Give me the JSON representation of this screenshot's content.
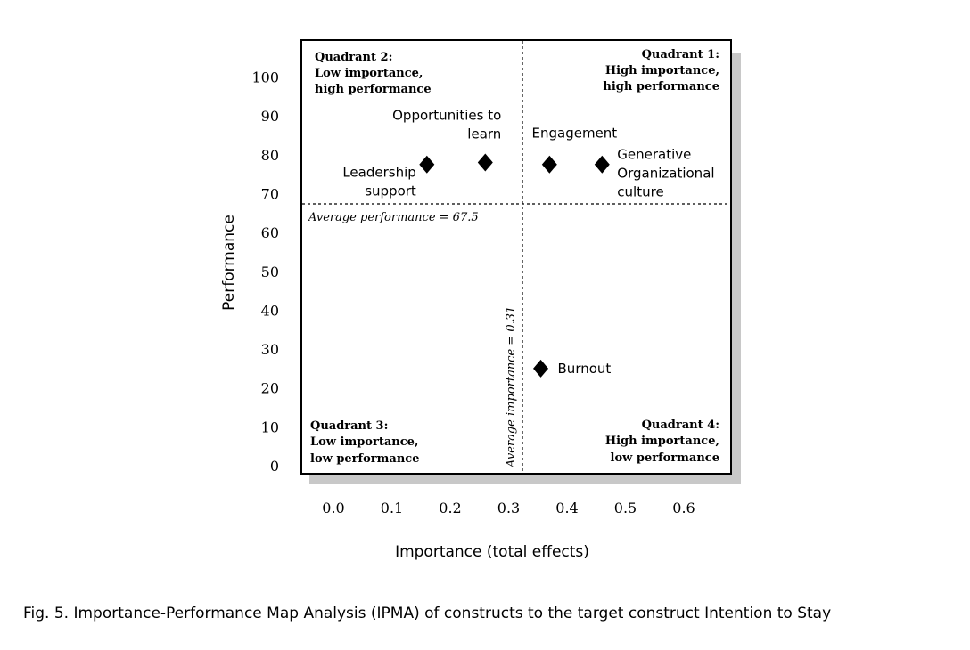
{
  "chart_data": {
    "type": "scatter",
    "xlabel": "Importance (total effects)",
    "ylabel": "Performance",
    "xlim": [
      -0.05,
      0.7
    ],
    "ylim": [
      -5,
      105
    ],
    "x_ticks": [
      "0.0",
      "0.1",
      "0.2",
      "0.3",
      "0.4",
      "0.5",
      "0.6"
    ],
    "x_tick_values": [
      0.0,
      0.1,
      0.2,
      0.3,
      0.4,
      0.5,
      0.6
    ],
    "y_ticks": [
      "0",
      "10",
      "20",
      "30",
      "40",
      "50",
      "60",
      "70",
      "80",
      "90",
      "100"
    ],
    "y_tick_values": [
      0,
      10,
      20,
      30,
      40,
      50,
      60,
      70,
      80,
      90,
      100
    ],
    "points": [
      {
        "label": [
          "Leadership",
          "support"
        ],
        "x": 0.16,
        "y": 77.5
      },
      {
        "label": [
          "Opportunities to",
          "learn"
        ],
        "x": 0.26,
        "y": 78
      },
      {
        "label": [
          "Engagement"
        ],
        "x": 0.37,
        "y": 77.5
      },
      {
        "label": [
          "Generative",
          "Organizational",
          "culture"
        ],
        "x": 0.46,
        "y": 77.5
      },
      {
        "label": [
          "Burnout"
        ],
        "x": 0.355,
        "y": 25
      }
    ],
    "reference_lines": {
      "average_performance": {
        "value": 67.5,
        "label": "Average performance = 67.5"
      },
      "average_importance": {
        "value": 0.31,
        "label": "Average importance = 0.31"
      }
    },
    "quadrants": [
      {
        "id": "q1",
        "lines": [
          "Quadrant 1:",
          "High importance,",
          "high performance"
        ]
      },
      {
        "id": "q2",
        "lines": [
          "Quadrant 2:",
          "Low importance,",
          "high performance"
        ]
      },
      {
        "id": "q3",
        "lines": [
          "Quadrant 3:",
          "Low importance,",
          "low performance"
        ]
      },
      {
        "id": "q4",
        "lines": [
          "Quadrant 4:",
          "High importance,",
          "low performance"
        ]
      }
    ],
    "marker": "diamond",
    "colors": {
      "marker": "#000000",
      "shadow": "#c8c8c8",
      "frame": "#000000"
    }
  },
  "caption": "Fig. 5.  Importance-Performance Map Analysis (IPMA) of constructs to the target construct Intention to Stay"
}
